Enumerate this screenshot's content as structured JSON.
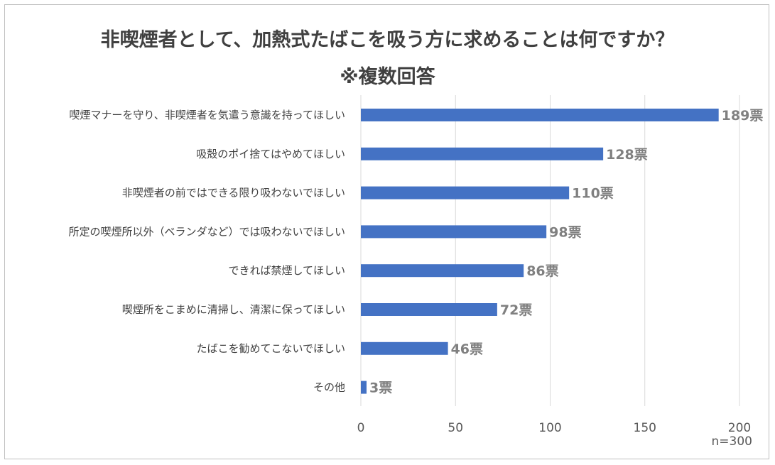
{
  "chart_data": {
    "type": "bar",
    "orientation": "horizontal",
    "title": "非喫煙者として、加熱式たばこを吸う方に求めることは何ですか？",
    "subtitle": "※複数回答",
    "categories": [
      "喫煙マナーを守り、非喫煙者を気遣う意識を持ってほしい",
      "吸殻のポイ捨てはやめてほしい",
      "非喫煙者の前ではできる限り吸わないでほしい",
      "所定の喫煙所以外（ベランダなど）では吸わないでほしい",
      "できれば禁煙してほしい",
      "喫煙所をこまめに清掃し、清潔に保ってほしい",
      "たばこを勧めてこないでほしい",
      "その他"
    ],
    "values": [
      189,
      128,
      110,
      98,
      86,
      72,
      46,
      3
    ],
    "value_labels": [
      "189票",
      "128票",
      "110票",
      "98票",
      "86票",
      "72票",
      "46票",
      "3票"
    ],
    "xlim": [
      0,
      200
    ],
    "xticks": [
      "0",
      "50",
      "100",
      "150",
      "200"
    ],
    "grid": true,
    "bar_color": "#4472c4",
    "note": "n=300"
  }
}
